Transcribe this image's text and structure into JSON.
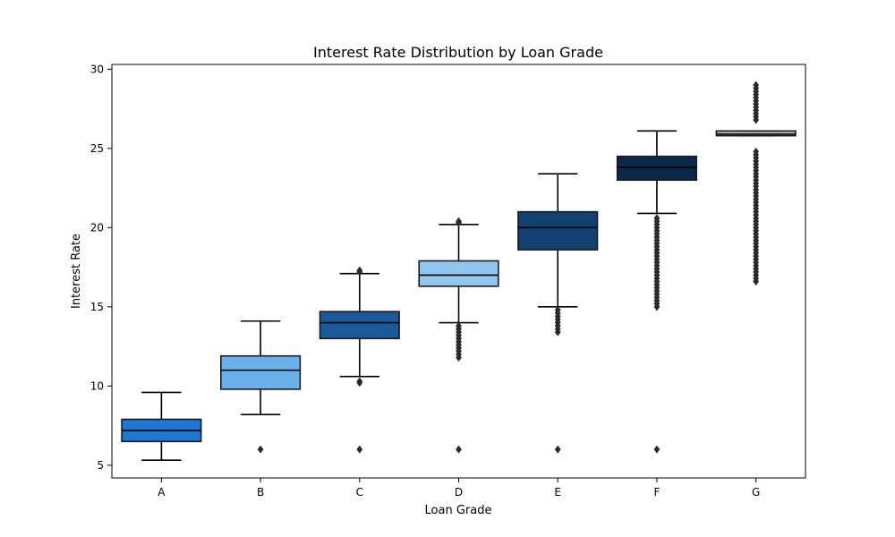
{
  "chart_data": {
    "type": "box",
    "title": "Interest Rate Distribution by Loan Grade",
    "xlabel": "Loan Grade",
    "ylabel": "Interest Rate",
    "ylim": [
      4.2,
      30.3
    ],
    "yticks": [
      5,
      10,
      15,
      20,
      25,
      30
    ],
    "grid": false,
    "legend": "none",
    "categories": [
      "A",
      "B",
      "C",
      "D",
      "E",
      "F",
      "G"
    ],
    "boxes": [
      {
        "category": "A",
        "color": "#1f77d4",
        "whisker_low": 5.32,
        "q1": 6.5,
        "median": 7.2,
        "q3": 7.9,
        "whisker_high": 9.6,
        "outliers": []
      },
      {
        "category": "B",
        "color": "#6ab0ea",
        "whisker_low": 8.2,
        "q1": 9.8,
        "median": 11.0,
        "q3": 11.9,
        "whisker_high": 14.1,
        "outliers": [
          6.0
        ]
      },
      {
        "category": "C",
        "color": "#1a5a99",
        "whisker_low": 10.6,
        "q1": 13.0,
        "median": 14.0,
        "q3": 14.7,
        "whisker_high": 17.1,
        "outliers": [
          6.0,
          10.2,
          10.3,
          17.2,
          17.3
        ]
      },
      {
        "category": "D",
        "color": "#92c6f0",
        "whisker_low": 14.0,
        "q1": 16.3,
        "median": 17.0,
        "q3": 17.9,
        "whisker_high": 20.2,
        "outliers": [
          6.0,
          11.8,
          12.0,
          12.2,
          12.4,
          12.6,
          12.8,
          13.0,
          13.2,
          13.4,
          13.6,
          13.8,
          20.3,
          20.4
        ]
      },
      {
        "category": "E",
        "color": "#124170",
        "whisker_low": 15.0,
        "q1": 18.6,
        "median": 20.0,
        "q3": 21.0,
        "whisker_high": 23.4,
        "outliers": [
          6.0,
          13.4,
          13.6,
          13.8,
          14.0,
          14.2,
          14.4,
          14.6,
          14.8
        ]
      },
      {
        "category": "F",
        "color": "#0c2848",
        "whisker_low": 20.9,
        "q1": 23.0,
        "median": 23.8,
        "q3": 24.5,
        "whisker_high": 26.1,
        "outliers": [
          6.0,
          15.0,
          15.2,
          15.4,
          15.6,
          15.8,
          16.0,
          16.2,
          16.4,
          16.6,
          16.8,
          17.0,
          17.2,
          17.4,
          17.6,
          17.8,
          18.0,
          18.2,
          18.4,
          18.6,
          18.8,
          19.0,
          19.2,
          19.4,
          19.6,
          19.8,
          20.0,
          20.2,
          20.4,
          20.6
        ]
      },
      {
        "category": "G",
        "color": "#b4b4b4",
        "whisker_low": 25.8,
        "q1": 25.8,
        "median": 25.9,
        "q3": 26.1,
        "whisker_high": 26.1,
        "outliers": [
          16.6,
          16.8,
          17.0,
          17.2,
          17.4,
          17.6,
          17.8,
          18.0,
          18.2,
          18.4,
          18.6,
          18.8,
          19.0,
          19.2,
          19.4,
          19.6,
          19.8,
          20.0,
          20.2,
          20.4,
          20.6,
          20.8,
          21.0,
          21.2,
          21.4,
          21.6,
          21.8,
          22.0,
          22.2,
          22.4,
          22.6,
          22.8,
          23.0,
          23.2,
          23.4,
          23.6,
          23.8,
          24.0,
          24.2,
          24.4,
          24.6,
          24.8,
          26.8,
          27.0,
          27.2,
          27.4,
          27.6,
          27.8,
          28.0,
          28.2,
          28.4,
          28.6,
          28.8,
          29.0
        ]
      }
    ]
  }
}
